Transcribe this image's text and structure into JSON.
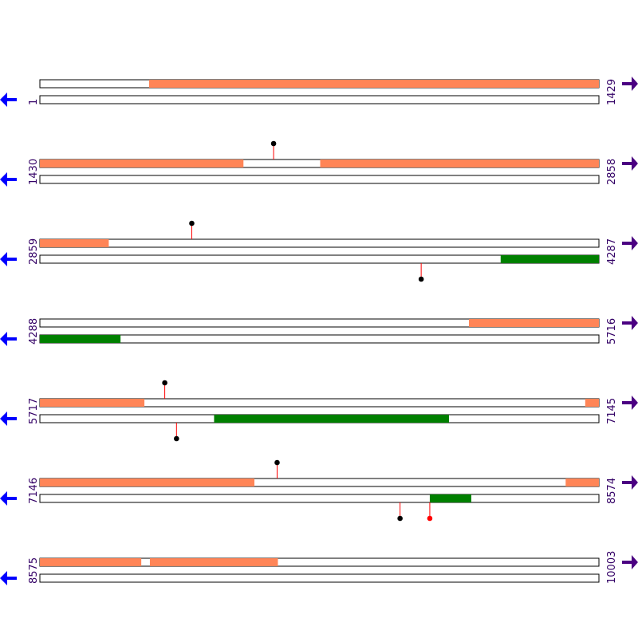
{
  "colors": {
    "forward_feature": "#ff8557",
    "reverse_feature": "#008000",
    "strand_line": "#000000",
    "arrow_right": "#4b0082",
    "arrow_left": "#0000ff",
    "marker_stem": "#ff0000",
    "marker_default": "#000000",
    "marker_highlight": "#ff0000"
  },
  "rows": [
    {
      "start_label": "1",
      "end_label": "1429",
      "start": 1,
      "end": 1429,
      "forward_features": [
        {
          "start": 280,
          "end": 1429
        }
      ],
      "reverse_features": [],
      "markers": []
    },
    {
      "start_label": "1430",
      "end_label": "2858",
      "start": 1430,
      "end": 2858,
      "forward_features": [
        {
          "start": 1430,
          "end": 1950
        },
        {
          "start": 2146,
          "end": 2858
        }
      ],
      "reverse_features": [],
      "markers": [
        {
          "position": 2027,
          "strand": "forward",
          "color": "default"
        }
      ]
    },
    {
      "start_label": "2859",
      "end_label": "4287",
      "start": 2859,
      "end": 4287,
      "forward_features": [
        {
          "start": 2859,
          "end": 3035
        }
      ],
      "reverse_features": [
        {
          "start": 4036,
          "end": 4287
        }
      ],
      "markers": [
        {
          "position": 3247,
          "strand": "forward",
          "color": "default"
        },
        {
          "position": 3833,
          "strand": "reverse",
          "color": "default"
        }
      ]
    },
    {
      "start_label": "4288",
      "end_label": "5716",
      "start": 4288,
      "end": 5716,
      "forward_features": [
        {
          "start": 5384,
          "end": 5716
        }
      ],
      "reverse_features": [
        {
          "start": 4288,
          "end": 4494
        }
      ],
      "markers": []
    },
    {
      "start_label": "5717",
      "end_label": "7145",
      "start": 5717,
      "end": 7145,
      "forward_features": [
        {
          "start": 5717,
          "end": 5984
        },
        {
          "start": 7110,
          "end": 7145
        }
      ],
      "reverse_features": [
        {
          "start": 6162,
          "end": 6762
        }
      ],
      "markers": [
        {
          "position": 6036,
          "strand": "forward",
          "color": "default"
        },
        {
          "position": 6066,
          "strand": "reverse",
          "color": "default"
        }
      ]
    },
    {
      "start_label": "7146",
      "end_label": "8574",
      "start": 7146,
      "end": 8574,
      "forward_features": [
        {
          "start": 7146,
          "end": 7694
        },
        {
          "start": 8489,
          "end": 8574
        }
      ],
      "reverse_features": [
        {
          "start": 8142,
          "end": 8248
        }
      ],
      "markers": [
        {
          "position": 7752,
          "strand": "forward",
          "color": "default"
        },
        {
          "position": 8066,
          "strand": "reverse",
          "color": "default"
        },
        {
          "position": 8142,
          "strand": "reverse",
          "color": "highlight"
        }
      ]
    },
    {
      "start_label": "8575",
      "end_label": "10003",
      "start": 8575,
      "end": 10003,
      "forward_features": [
        {
          "start": 8575,
          "end": 8834
        },
        {
          "start": 8856,
          "end": 9183
        }
      ],
      "reverse_features": [],
      "markers": []
    }
  ]
}
